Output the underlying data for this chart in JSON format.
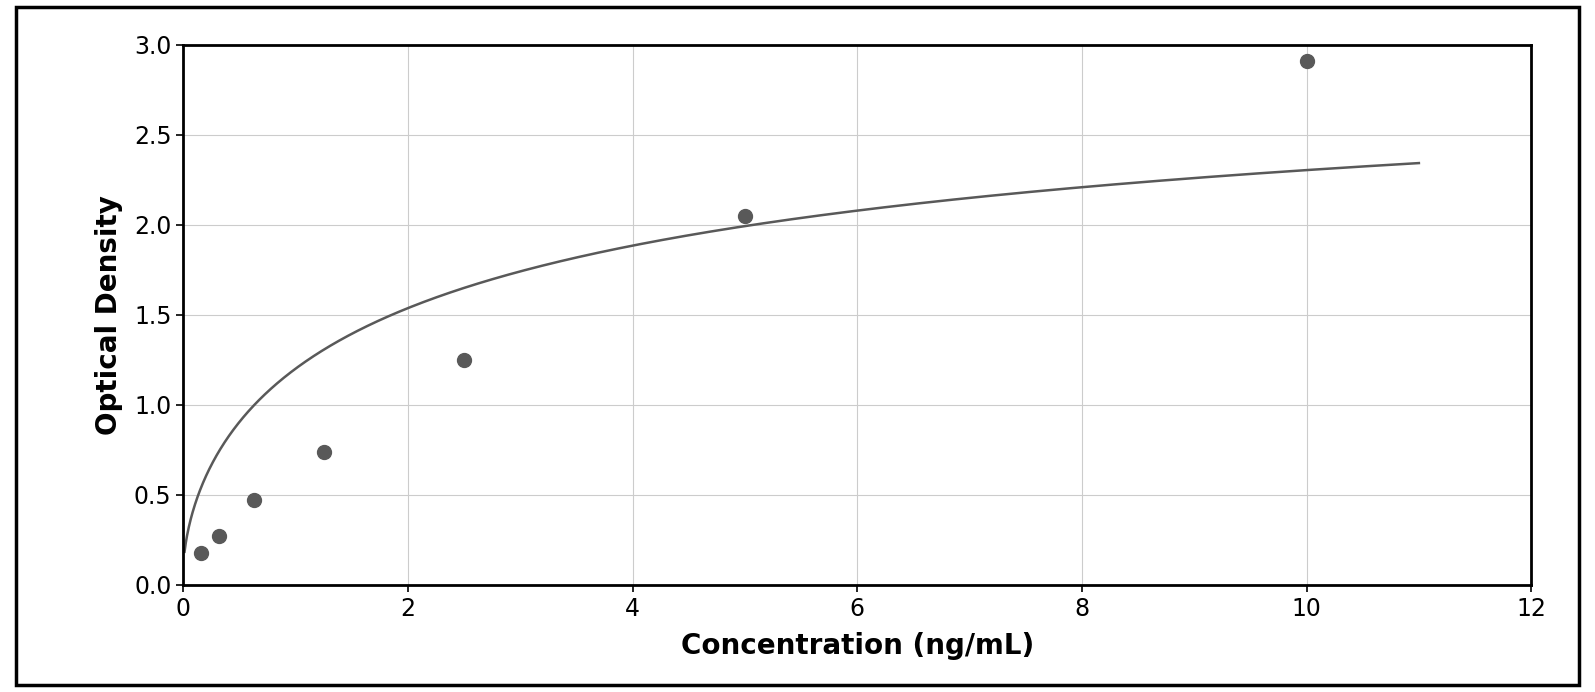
{
  "x_data": [
    0.156,
    0.313,
    0.625,
    1.25,
    2.5,
    5.0,
    10.0
  ],
  "y_data": [
    0.175,
    0.27,
    0.47,
    0.74,
    1.25,
    2.05,
    2.91
  ],
  "xlabel": "Concentration (ng/mL)",
  "ylabel": "Optical Density",
  "xlim": [
    0,
    12
  ],
  "ylim": [
    0,
    3.0
  ],
  "xticks": [
    0,
    2,
    4,
    6,
    8,
    10,
    12
  ],
  "yticks": [
    0,
    0.5,
    1.0,
    1.5,
    2.0,
    2.5,
    3.0
  ],
  "data_color": "#595959",
  "line_color": "#595959",
  "marker_size": 10,
  "line_width": 1.8,
  "grid_color": "#cccccc",
  "background_color": "#ffffff",
  "border_color": "#000000",
  "xlabel_fontsize": 20,
  "ylabel_fontsize": 20,
  "tick_fontsize": 17,
  "xlabel_fontweight": "bold",
  "ylabel_fontweight": "bold",
  "outer_border_color": "#000000",
  "outer_border_lw": 2.5
}
